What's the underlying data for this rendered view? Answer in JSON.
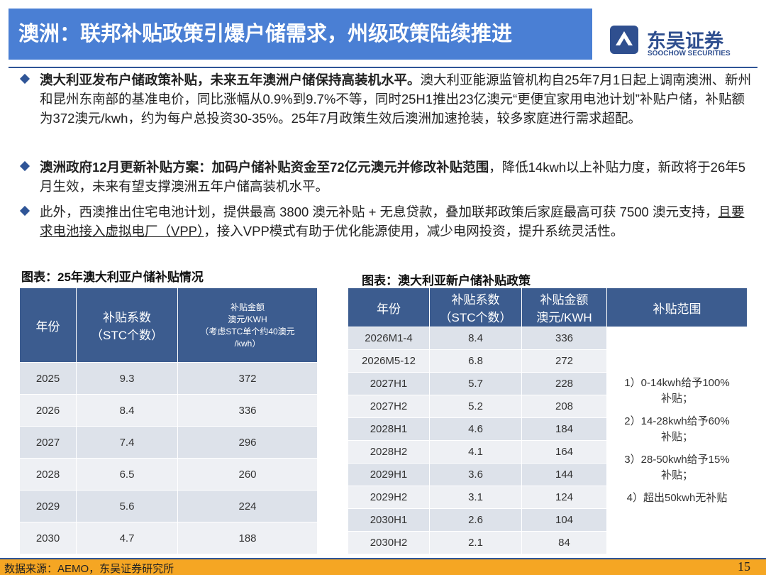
{
  "header": {
    "title": "澳洲：联邦补贴政策引爆户储需求，州级政策陆续推进",
    "logo_cn": "东吴证券",
    "logo_en": "SOOCHOW SECURITIES"
  },
  "bullets": [
    {
      "bold": "澳大利亚发布户储政策补贴，未来五年澳洲户储保持高装机水平。",
      "rest": "澳大利亚能源监管机构自25年7月1日起上调南澳洲、新州和昆州东南部的基准电价，同比涨幅从0.9%到9.7%不等，同时25H1推出23亿澳元“更便宜家用电池计划”补贴户储，补贴额为372澳元/kwh，约为每户总投资30-35%。25年7月政策生效后澳洲加速抢装，较多家庭进行需求超配。"
    },
    {
      "bold": "澳洲政府12月更新补贴方案：加码户储补贴资金至72亿元澳元并修改补贴范围",
      "rest": "，降低14kwh以上补贴力度，新政将于26年5月生效，未来有望支撑澳洲五年户储高装机水平。"
    },
    {
      "text": "此外，西澳推出住宅电池计划，提供最高 3800 澳元补贴 + 无息贷款，叠加联邦政策后家庭最高可获 7500 澳元支持，",
      "underline": "且要求电池接入虚拟电厂（VPP）",
      "rest": "，接入VPP模式有助于优化能源使用，减少电网投资，提升系统灵活性。"
    }
  ],
  "table1": {
    "title": "图表：25年澳大利亚户储补贴情况",
    "headers": [
      [
        "年份"
      ],
      [
        "补贴系数",
        "（STC个数）"
      ],
      [
        "补贴金额",
        "澳元/KWH",
        "（考虑STC单个约40澳元",
        "/kwh）"
      ]
    ],
    "rows": [
      [
        "2025",
        9.3,
        372
      ],
      [
        "2026",
        8.4,
        336
      ],
      [
        "2027",
        7.4,
        296
      ],
      [
        "2028",
        6.5,
        260
      ],
      [
        "2029",
        5.6,
        224
      ],
      [
        "2030",
        4.7,
        188
      ]
    ]
  },
  "table2": {
    "title": "图表：澳大利亚新户储补贴政策",
    "headers": [
      [
        "年份"
      ],
      [
        "补贴系数",
        "（STC个数）"
      ],
      [
        "补贴金额",
        "澳元/KWH"
      ],
      [
        "补贴范围"
      ]
    ],
    "rows": [
      [
        "2026M1-4",
        8.4,
        336
      ],
      [
        "2026M5-12",
        6.8,
        272
      ],
      [
        "2027H1",
        5.7,
        228
      ],
      [
        "2027H2",
        5.2,
        208
      ],
      [
        "2028H1",
        4.6,
        184
      ],
      [
        "2028H2",
        4.1,
        164
      ],
      [
        "2029H1",
        3.6,
        144
      ],
      [
        "2029H2",
        3.1,
        124
      ],
      [
        "2030H1",
        2.6,
        104
      ],
      [
        "2030H2",
        2.1,
        84
      ]
    ],
    "scope": [
      [
        "1）0-14kwh给予100%",
        "补贴；"
      ],
      [
        "2）14-28kwh给予60%",
        "补贴；"
      ],
      [
        "3）28-50kwh给予15%",
        "补贴；"
      ],
      [
        "4）超出50kwh无补贴"
      ]
    ]
  },
  "footer": {
    "source": "数据来源：AEMO，东吴证券研究所",
    "page": "15"
  }
}
